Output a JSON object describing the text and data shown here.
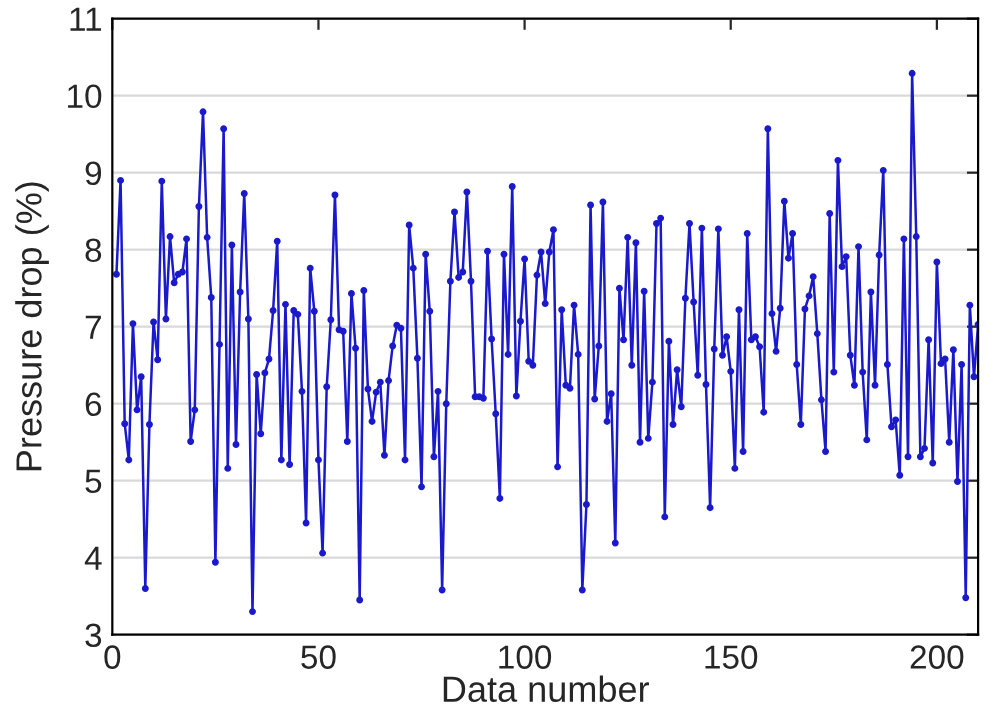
{
  "chart_data": {
    "type": "line",
    "xlabel": "Data number",
    "ylabel": "Pressure drop (%)",
    "x": [
      1,
      2,
      3,
      4,
      5,
      6,
      7,
      8,
      9,
      10,
      11,
      12,
      13,
      14,
      15,
      16,
      17,
      18,
      19,
      20,
      21,
      22,
      23,
      24,
      25,
      26,
      27,
      28,
      29,
      30,
      31,
      32,
      33,
      34,
      35,
      36,
      37,
      38,
      39,
      40,
      41,
      42,
      43,
      44,
      45,
      46,
      47,
      48,
      49,
      50,
      51,
      52,
      53,
      54,
      55,
      56,
      57,
      58,
      59,
      60,
      61,
      62,
      63,
      64,
      65,
      66,
      67,
      68,
      69,
      70,
      71,
      72,
      73,
      74,
      75,
      76,
      77,
      78,
      79,
      80,
      81,
      82,
      83,
      84,
      85,
      86,
      87,
      88,
      89,
      90,
      91,
      92,
      93,
      94,
      95,
      96,
      97,
      98,
      99,
      100,
      101,
      102,
      103,
      104,
      105,
      106,
      107,
      108,
      109,
      110,
      111,
      112,
      113,
      114,
      115,
      116,
      117,
      118,
      119,
      120,
      121,
      122,
      123,
      124,
      125,
      126,
      127,
      128,
      129,
      130,
      131,
      132,
      133,
      134,
      135,
      136,
      137,
      138,
      139,
      140,
      141,
      142,
      143,
      144,
      145,
      146,
      147,
      148,
      149,
      150,
      151,
      152,
      153,
      154,
      155,
      156,
      157,
      158,
      159,
      160,
      161,
      162,
      163,
      164,
      165,
      166,
      167,
      168,
      169,
      170,
      171,
      172,
      173,
      174,
      175,
      176,
      177,
      178,
      179,
      180,
      181,
      182,
      183,
      184,
      185,
      186,
      187,
      188,
      189,
      190,
      191,
      192,
      193,
      194,
      195,
      196,
      197,
      198,
      199,
      200,
      201,
      202,
      203,
      204,
      205,
      206,
      207,
      208,
      209,
      210
    ],
    "series": [
      {
        "color": "#1a1acc",
        "values": [
          7.68,
          8.9,
          5.74,
          5.27,
          7.04,
          5.92,
          6.35,
          3.6,
          5.73,
          7.06,
          6.57,
          8.89,
          7.1,
          8.17,
          7.57,
          7.68,
          7.71,
          8.14,
          5.51,
          5.92,
          8.56,
          9.79,
          8.16,
          7.38,
          3.94,
          6.77,
          9.57,
          5.16,
          8.06,
          5.47,
          7.45,
          8.73,
          7.1,
          3.3,
          6.38,
          5.61,
          6.4,
          6.58,
          7.21,
          8.11,
          5.27,
          7.29,
          5.21,
          7.21,
          7.16,
          6.16,
          4.45,
          7.76,
          7.2,
          5.27,
          4.06,
          6.22,
          7.09,
          8.71,
          6.96,
          6.94,
          5.51,
          7.43,
          6.72,
          3.45,
          7.47,
          6.19,
          5.77,
          6.15,
          6.28,
          5.33,
          6.3,
          6.75,
          7.02,
          6.98,
          5.27,
          8.32,
          7.76,
          6.59,
          4.92,
          7.94,
          7.2,
          5.31,
          6.16,
          3.58,
          6.0,
          7.59,
          8.49,
          7.64,
          7.71,
          8.75,
          7.59,
          6.09,
          6.09,
          6.07,
          7.98,
          6.84,
          5.87,
          4.77,
          7.94,
          6.64,
          8.82,
          6.1,
          7.07,
          7.88,
          6.55,
          6.5,
          7.67,
          7.97,
          7.3,
          7.97,
          8.26,
          5.18,
          7.22,
          6.24,
          6.2,
          7.28,
          6.64,
          3.58,
          4.69,
          8.58,
          6.06,
          6.75,
          8.62,
          5.77,
          6.13,
          4.19,
          7.5,
          6.83,
          8.16,
          6.5,
          8.09,
          5.5,
          7.46,
          5.55,
          6.28,
          8.34,
          8.41,
          4.53,
          6.81,
          5.73,
          6.44,
          5.96,
          7.37,
          8.34,
          7.32,
          6.37,
          8.28,
          6.25,
          4.65,
          6.71,
          8.27,
          6.63,
          6.87,
          6.42,
          5.16,
          7.22,
          5.38,
          8.21,
          6.83,
          6.87,
          6.74,
          5.89,
          9.57,
          7.17,
          6.68,
          7.24,
          8.63,
          7.89,
          8.21,
          6.51,
          5.73,
          7.23,
          7.4,
          7.65,
          6.91,
          6.05,
          5.38,
          8.47,
          6.41,
          9.16,
          7.78,
          7.91,
          6.63,
          6.24,
          8.04,
          6.41,
          5.53,
          7.45,
          6.24,
          7.93,
          9.03,
          6.51,
          5.7,
          5.79,
          5.07,
          8.14,
          5.31,
          10.29,
          8.17,
          5.31,
          5.42,
          6.83,
          5.23,
          7.84,
          6.52,
          6.58,
          5.5,
          6.7,
          4.99,
          6.51,
          3.48,
          7.28,
          6.35,
          7.03
        ]
      }
    ],
    "xlim": [
      0,
      210
    ],
    "xticks": [
      0,
      50,
      100,
      150,
      200
    ],
    "ylim": [
      3,
      11
    ],
    "yticks": [
      3,
      4,
      5,
      6,
      7,
      8,
      9,
      10,
      11
    ],
    "grid": "y",
    "legend": false,
    "marker": "circle",
    "line_style": "solid"
  }
}
